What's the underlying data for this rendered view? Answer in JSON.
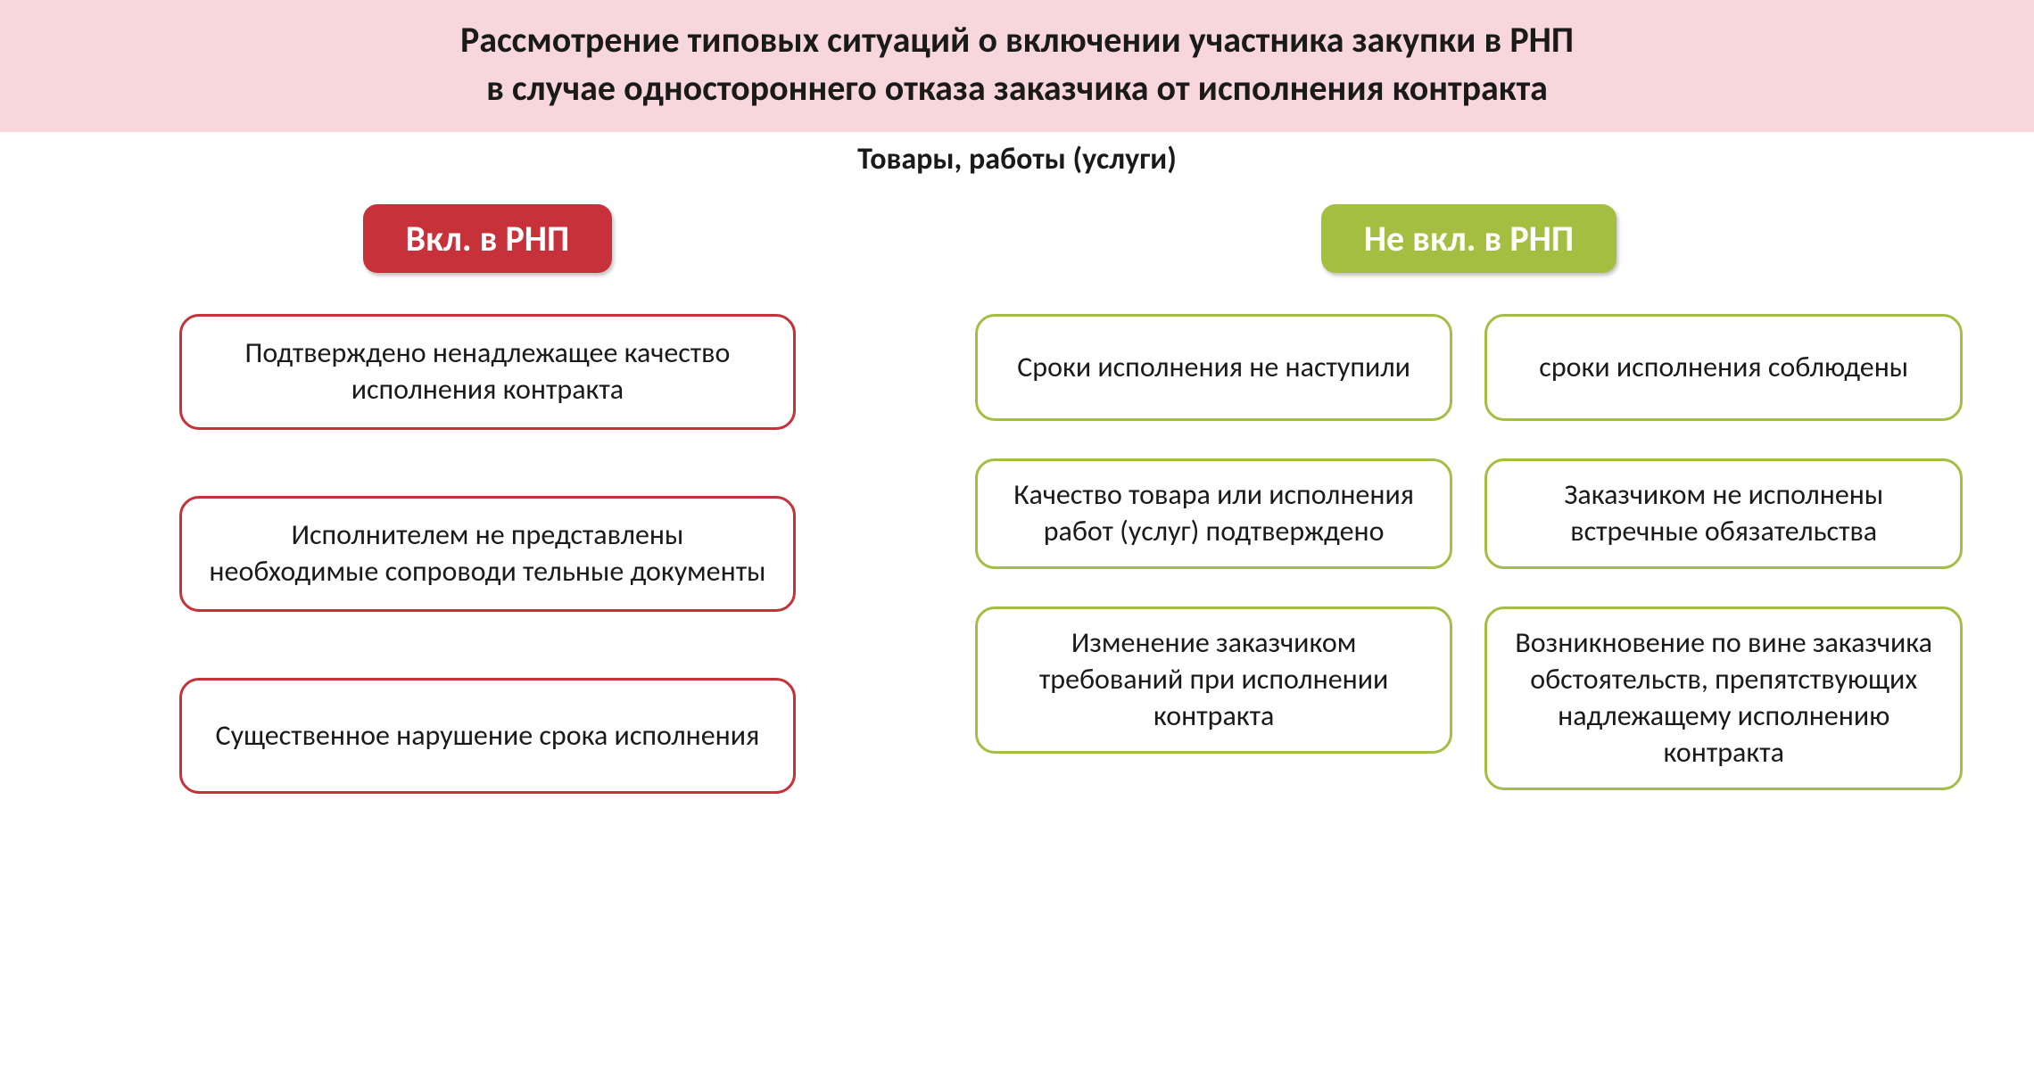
{
  "title": {
    "line1": "Рассмотрение типовых ситуаций о включении участника закупки в РНП",
    "line2": "в случае одностороннего отказа заказчика от исполнения контракта",
    "background": "#f7d7dc",
    "text_color": "#1a1a1a",
    "fontsize": 40
  },
  "subtitle": {
    "text": "Товары, работы (услуги)",
    "fontsize": 34,
    "text_color": "#1a1a1a"
  },
  "left": {
    "badge": {
      "text": "Вкл. в РНП",
      "background": "#c7313a",
      "fontsize": 40,
      "border_radius": 16
    },
    "card_style": {
      "border_color": "#c7313a",
      "border_width": 3,
      "border_radius": 22,
      "fontsize": 32,
      "text_color": "#1a1a1a",
      "min_height": 130
    },
    "items": [
      "Подтверждено ненадлежащее качество  исполнения контракта",
      "Исполнителем не представлены необходимые сопроводи тельные документы",
      "Существенное нарушение срока исполнения"
    ]
  },
  "right": {
    "badge": {
      "text": "Не вкл. в РНП",
      "background": "#a4be42",
      "fontsize": 40,
      "border_radius": 16
    },
    "card_style": {
      "border_color": "#a4be42",
      "border_width": 3,
      "border_radius": 22,
      "fontsize": 32,
      "text_color": "#1a1a1a",
      "min_height": 120
    },
    "items": [
      "Сроки исполнения не наступили",
      "сроки исполнения соблюдены",
      "Качество товара или исполнения работ (услуг) подтверждено",
      "Заказчиком не исполнены встречные обязательства",
      "Изменение заказчиком требований при исполнении контракта",
      "Возникновение по вине заказчика обстоятельств, препятствующих надлежащему исполнению контракта"
    ]
  }
}
